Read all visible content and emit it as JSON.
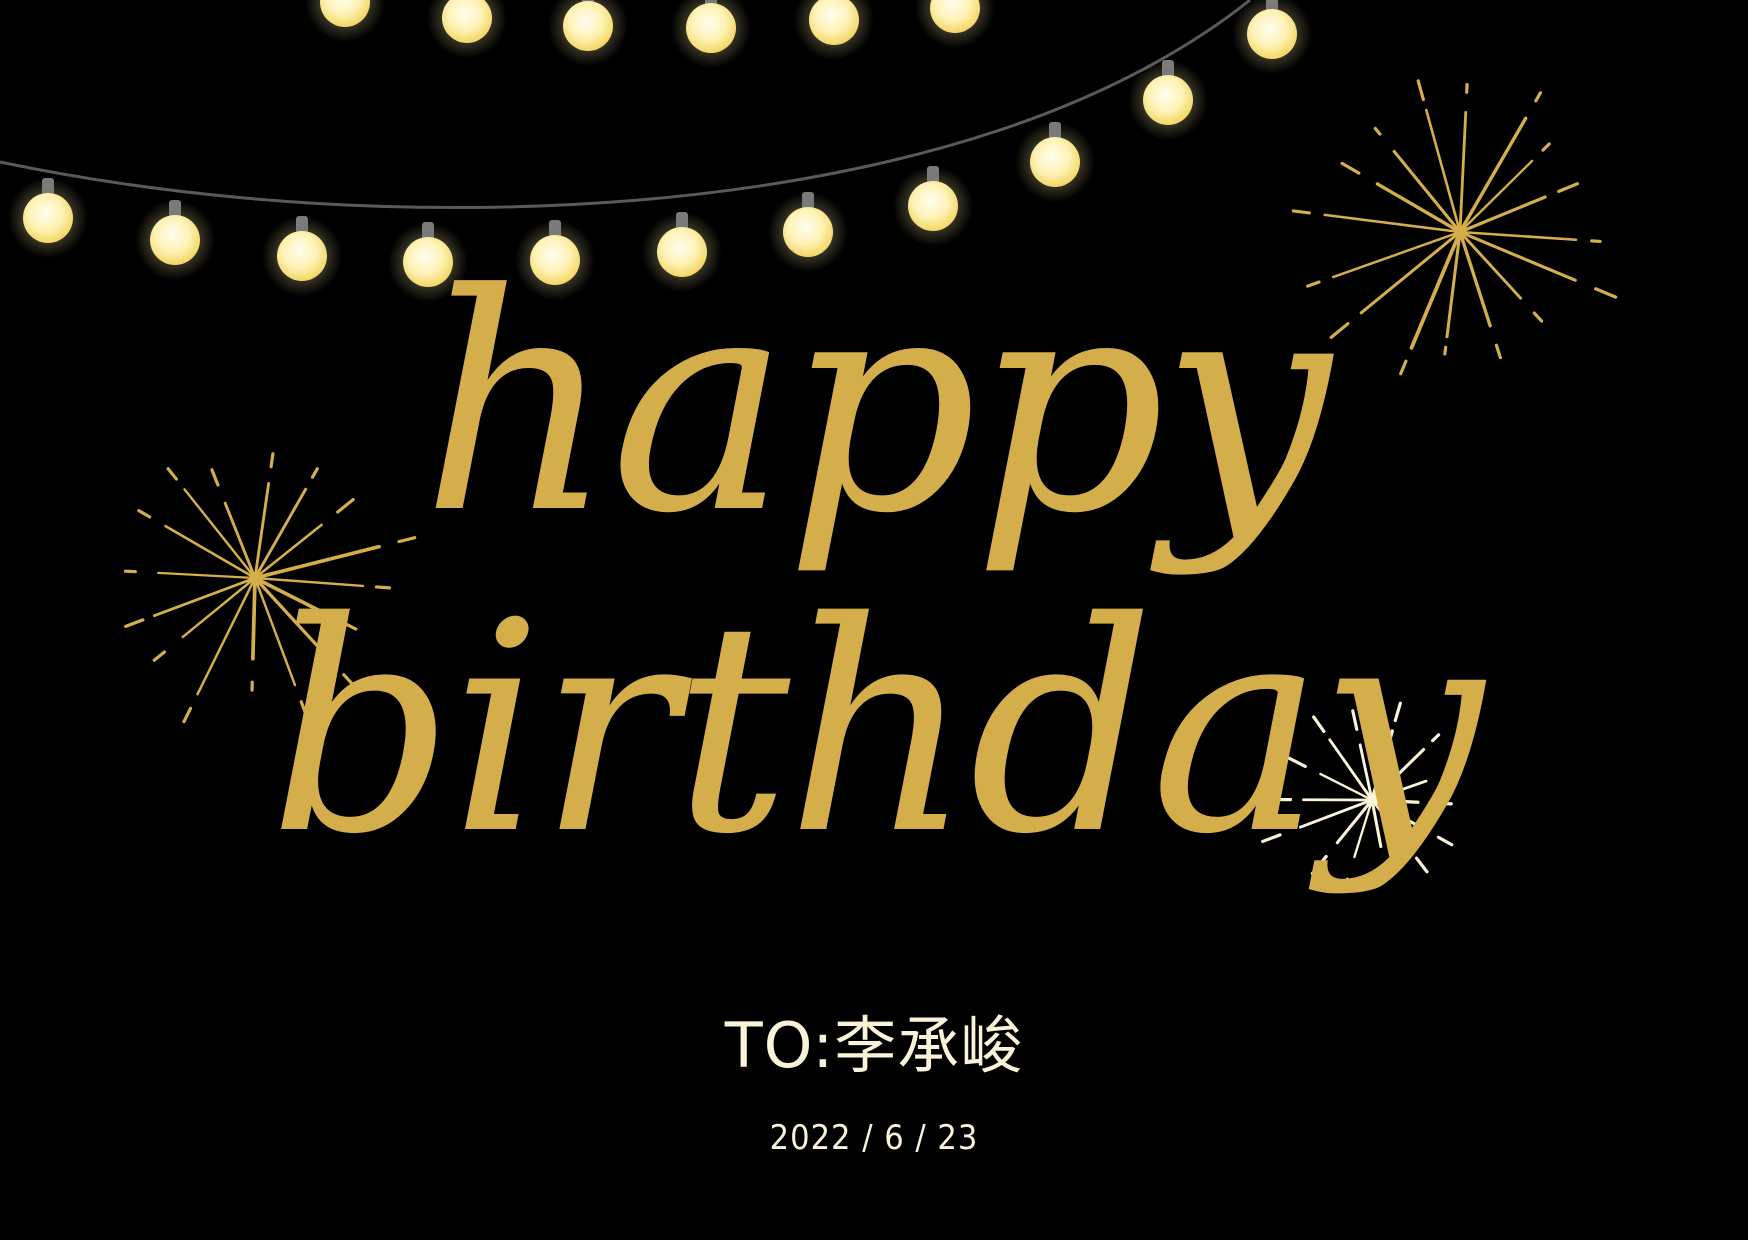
{
  "card": {
    "headline_line1": "happy",
    "headline_line2": "birthday",
    "recipient": "TO:李承峻",
    "date": "2022 / 6 / 23"
  },
  "colors": {
    "background": "#000000",
    "gold": "#d4ae4a",
    "bulb_glow": "#ffe98a",
    "bulb_core": "#fffbe6",
    "wire": "#5a5a5a",
    "text_light": "#fbf3d8"
  },
  "icons": {
    "bulb": "light-bulb-icon",
    "firework": "firework-burst-icon"
  }
}
